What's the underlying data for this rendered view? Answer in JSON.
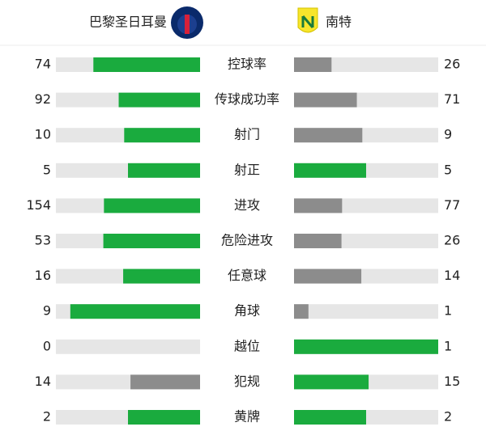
{
  "header": {
    "home": "巴黎圣日耳曼",
    "away": "南特"
  },
  "colors": {
    "track": "#e6e6e6",
    "leading": "#1aab3e",
    "trailing": "#8c8c8c"
  },
  "stats": [
    {
      "label": "控球率",
      "home": 74,
      "away": 26
    },
    {
      "label": "传球成功率",
      "home": 92,
      "away": 71
    },
    {
      "label": "射门",
      "home": 10,
      "away": 9
    },
    {
      "label": "射正",
      "home": 5,
      "away": 5
    },
    {
      "label": "进攻",
      "home": 154,
      "away": 77
    },
    {
      "label": "危险进攻",
      "home": 53,
      "away": 26
    },
    {
      "label": "任意球",
      "home": 16,
      "away": 14
    },
    {
      "label": "角球",
      "home": 9,
      "away": 1
    },
    {
      "label": "越位",
      "home": 0,
      "away": 1
    },
    {
      "label": "犯规",
      "home": 14,
      "away": 15
    },
    {
      "label": "黄牌",
      "home": 2,
      "away": 2
    }
  ]
}
